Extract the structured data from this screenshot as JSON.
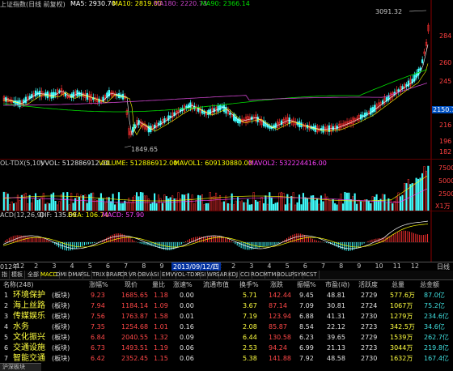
{
  "main_chart": {
    "title": "上证指数(日线 前复权)",
    "ma5": "MA5: 2930.70",
    "ma10": "MA10: 2819.00",
    "ma180": "MA180: 2220.73",
    "ma90": "MA90: 2366.14",
    "high_label": "3091.32",
    "low_label": "1849.65",
    "last_price": "2150.7",
    "axis_labels": [
      "284",
      "260",
      "245",
      "216",
      "196",
      "182"
    ],
    "colors": {
      "ma5": "#ffffff",
      "ma10": "#ffff00",
      "ma180": "#cc44cc",
      "ma90": "#00e000",
      "up": "#ff3030",
      "down": "#40ffff"
    }
  },
  "volume_chart": {
    "title": "OL-TDX(5,10)",
    "vvol": "VVOL: 512886912.00",
    "volume": "VOLUME: 512886912.00",
    "mavol1": "MAVOL1: 609130880.00",
    "mavol2": "MAVOL2: 532224416.00",
    "axis_labels": [
      "7500",
      "5000",
      "2500",
      "X1万"
    ]
  },
  "macd_chart": {
    "title": "ACD(12,26,9)",
    "dif": "DIF: 135.69",
    "dea": "DEA: 106.74",
    "macd": "MACD: 57.90"
  },
  "date_axis": {
    "start": "012年",
    "months": [
      "12",
      "2",
      "3",
      "4",
      "5",
      "6",
      "7",
      "8",
      "9",
      "10",
      "11",
      "12",
      "2",
      "3",
      "4",
      "5",
      "6",
      "7",
      "8",
      "9",
      "10",
      "11",
      "12"
    ],
    "cursor_date": "2013/09/12/四",
    "right_label": "日线"
  },
  "tabs": [
    "MACD",
    "DMI",
    "DMA",
    "FSL",
    "TRIX",
    "BRAR",
    "CR",
    "VR",
    "OBV",
    "ASI",
    "EMV",
    "VOL-TDX",
    "RSI",
    "WR",
    "SAR",
    "KDJ",
    "CCI",
    "ROC",
    "MTM",
    "BOLL",
    "PSY",
    "MCST"
  ],
  "tabs_left": [
    "指",
    "模板",
    "全部"
  ],
  "table": {
    "headers": [
      "名称(248)",
      "涨幅%",
      "现价",
      "量比",
      "涨速%",
      "流通市值",
      "换手%",
      "涨跌",
      "振幅%",
      "市盈(动)",
      "活跃度",
      "总量",
      "总金额"
    ],
    "rows": [
      {
        "idx": "1",
        "name": "环境保护",
        "tag": "(板块)",
        "chg": "9.23",
        "price": "1685.65",
        "vr": "1.18",
        "speed": "0.00",
        "mcap": "",
        "turn": "5.71",
        "diff": "142.44",
        "amp": "9.45",
        "pe": "48.81",
        "act": "2729",
        "vol": "577.6万",
        "amt": "87.0亿"
      },
      {
        "idx": "2",
        "name": "海上丝路",
        "tag": "(板块)",
        "chg": "7.94",
        "price": "1184.14",
        "vr": "1.09",
        "speed": "0.00",
        "mcap": "",
        "turn": "3.67",
        "diff": "87.14",
        "amp": "7.09",
        "pe": "30.81",
        "act": "2724",
        "vol": "1067万",
        "amt": "75.2亿"
      },
      {
        "idx": "3",
        "name": "传媒娱乐",
        "tag": "(板块)",
        "chg": "7.56",
        "price": "1763.87",
        "vr": "1.58",
        "speed": "0.01",
        "mcap": "",
        "turn": "7.19",
        "diff": "123.94",
        "amp": "6.88",
        "pe": "41.31",
        "act": "2730",
        "vol": "1279万",
        "amt": "234.6亿"
      },
      {
        "idx": "4",
        "name": "水务",
        "tag": "(板块)",
        "chg": "7.35",
        "price": "1254.68",
        "vr": "1.01",
        "speed": "0.16",
        "mcap": "",
        "turn": "2.08",
        "diff": "85.87",
        "amp": "8.54",
        "pe": "22.12",
        "act": "2723",
        "vol": "342.5万",
        "amt": "34.6亿"
      },
      {
        "idx": "5",
        "name": "文化振兴",
        "tag": "(板块)",
        "chg": "6.84",
        "price": "2040.55",
        "vr": "1.32",
        "speed": "0.09",
        "mcap": "",
        "turn": "6.44",
        "diff": "130.58",
        "amp": "6.23",
        "pe": "39.65",
        "act": "2729",
        "vol": "1539万",
        "amt": "262.7亿"
      },
      {
        "idx": "6",
        "name": "交通设施",
        "tag": "(板块)",
        "chg": "6.73",
        "price": "1493.51",
        "vr": "1.19",
        "speed": "0.06",
        "mcap": "",
        "turn": "2.53",
        "diff": "94.24",
        "amp": "6.99",
        "pe": "21.13",
        "act": "2723",
        "vol": "3044万",
        "amt": "219.8亿"
      },
      {
        "idx": "7",
        "name": "智能交通",
        "tag": "(板块)",
        "chg": "6.42",
        "price": "2352.45",
        "vr": "1.15",
        "speed": "0.06",
        "mcap": "",
        "turn": "5.38",
        "diff": "141.88",
        "amp": "7.92",
        "pe": "48.58",
        "act": "2730",
        "vol": "1632万",
        "amt": "167.4亿"
      }
    ]
  },
  "footer_tab": "沪深板块"
}
